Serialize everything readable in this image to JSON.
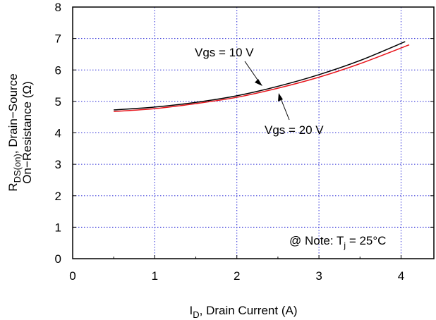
{
  "chart_data": {
    "type": "line",
    "title": "",
    "xlabel": {
      "main": "I",
      "sub": "D",
      "rest": ", Drain Current (A)"
    },
    "ylabel": {
      "line1_main": "R",
      "line1_sub": "DS(on)",
      "line1_rest": ", Drain−Source",
      "line2": "On−Resistance (Ω)"
    },
    "xlim": [
      0,
      4.4
    ],
    "ylim": [
      0,
      8
    ],
    "xticks": [
      0,
      1,
      2,
      3,
      4
    ],
    "yticks": [
      0,
      1,
      2,
      3,
      4,
      5,
      6,
      7,
      8
    ],
    "grid": true,
    "series": [
      {
        "name": "Vgs = 10 V",
        "color": "#000000",
        "x": [
          0.5,
          1.0,
          1.5,
          2.0,
          2.5,
          3.0,
          3.5,
          4.05
        ],
        "y": [
          4.73,
          4.82,
          4.97,
          5.18,
          5.48,
          5.85,
          6.3,
          6.9
        ]
      },
      {
        "name": "Vgs = 20 V",
        "color": "#e8141b",
        "x": [
          0.5,
          1.0,
          1.5,
          2.0,
          2.5,
          3.0,
          3.5,
          4.1
        ],
        "y": [
          4.68,
          4.77,
          4.93,
          5.13,
          5.42,
          5.77,
          6.2,
          6.8
        ]
      }
    ],
    "annotations": {
      "vgs10": "Vgs = 10 V",
      "vgs20": "Vgs = 20 V",
      "note_main": "@ Note: T",
      "note_sub": "j",
      "note_rest": " = 25°C"
    }
  }
}
